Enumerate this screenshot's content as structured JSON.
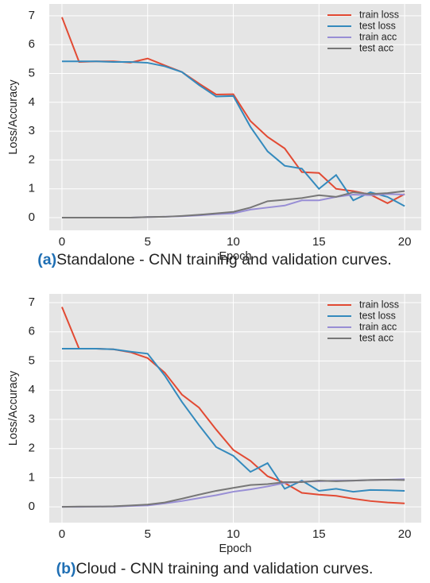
{
  "chart_data": [
    {
      "type": "line",
      "xlabel": "Epoch",
      "ylabel": "Loss/Accuracy",
      "x": [
        0,
        1,
        2,
        3,
        4,
        5,
        6,
        7,
        8,
        9,
        10,
        11,
        12,
        13,
        14,
        15,
        16,
        17,
        18,
        19,
        20
      ],
      "xlim": [
        -0.74,
        20.97
      ],
      "xticks": [
        0,
        5,
        10,
        15,
        20
      ],
      "ylim": [
        -0.44,
        7.41
      ],
      "yticks": [
        0,
        1,
        2,
        3,
        4,
        5,
        6,
        7
      ],
      "grid": true,
      "legend": "upper right",
      "series": [
        {
          "name": "train loss",
          "color": "#e24a33",
          "values": [
            6.95,
            5.4,
            5.42,
            5.42,
            5.38,
            5.52,
            5.28,
            5.05,
            4.65,
            4.27,
            4.28,
            3.35,
            2.8,
            2.4,
            1.58,
            1.55,
            1.0,
            0.92,
            0.8,
            0.5,
            0.82
          ]
        },
        {
          "name": "test loss",
          "color": "#348abd",
          "values": [
            5.42,
            5.42,
            5.42,
            5.4,
            5.4,
            5.37,
            5.25,
            5.05,
            4.6,
            4.2,
            4.22,
            3.15,
            2.3,
            1.8,
            1.7,
            1.0,
            1.48,
            0.6,
            0.88,
            0.72,
            0.4
          ]
        },
        {
          "name": "train acc",
          "color": "#988ed5",
          "values": [
            0,
            0,
            0,
            0,
            0,
            0.02,
            0.03,
            0.05,
            0.08,
            0.12,
            0.15,
            0.28,
            0.35,
            0.42,
            0.6,
            0.6,
            0.72,
            0.8,
            0.78,
            0.82,
            0.8
          ]
        },
        {
          "name": "test acc",
          "color": "#777777",
          "values": [
            0,
            0,
            0,
            0,
            0,
            0.02,
            0.03,
            0.06,
            0.1,
            0.15,
            0.2,
            0.35,
            0.57,
            0.62,
            0.68,
            0.78,
            0.72,
            0.88,
            0.82,
            0.85,
            0.92
          ]
        }
      ]
    },
    {
      "type": "line",
      "xlabel": "Epoch",
      "ylabel": "Loss/Accuracy",
      "x": [
        0,
        1,
        2,
        3,
        4,
        5,
        6,
        7,
        8,
        9,
        10,
        11,
        12,
        13,
        14,
        15,
        16,
        17,
        18,
        19,
        20
      ],
      "xlim": [
        -0.74,
        20.97
      ],
      "xticks": [
        0,
        5,
        10,
        15,
        20
      ],
      "ylim": [
        -0.54,
        7.3
      ],
      "yticks": [
        0,
        1,
        2,
        3,
        4,
        5,
        6,
        7
      ],
      "grid": true,
      "legend": "upper right",
      "series": [
        {
          "name": "train loss",
          "color": "#e24a33",
          "values": [
            6.85,
            5.42,
            5.42,
            5.4,
            5.3,
            5.1,
            4.6,
            3.85,
            3.4,
            2.65,
            1.95,
            1.58,
            1.05,
            0.82,
            0.48,
            0.42,
            0.38,
            0.28,
            0.2,
            0.15,
            0.12
          ]
        },
        {
          "name": "test loss",
          "color": "#348abd",
          "values": [
            5.42,
            5.42,
            5.42,
            5.4,
            5.32,
            5.25,
            4.5,
            3.6,
            2.8,
            2.05,
            1.75,
            1.2,
            1.5,
            0.62,
            0.9,
            0.55,
            0.62,
            0.52,
            0.58,
            0.57,
            0.55
          ]
        },
        {
          "name": "train acc",
          "color": "#988ed5",
          "values": [
            0,
            0,
            0.01,
            0.01,
            0.03,
            0.05,
            0.12,
            0.2,
            0.3,
            0.4,
            0.52,
            0.6,
            0.7,
            0.82,
            0.86,
            0.88,
            0.9,
            0.9,
            0.92,
            0.93,
            0.95
          ]
        },
        {
          "name": "test acc",
          "color": "#777777",
          "values": [
            0,
            0.01,
            0.01,
            0.02,
            0.05,
            0.08,
            0.15,
            0.28,
            0.42,
            0.55,
            0.65,
            0.75,
            0.78,
            0.85,
            0.85,
            0.9,
            0.88,
            0.9,
            0.92,
            0.93,
            0.92
          ]
        }
      ]
    }
  ],
  "captions": [
    {
      "label": "(a)",
      "text": "Standalone - CNN training and validation curves."
    },
    {
      "label": "(b)",
      "text": "Cloud - CNN training and validation curves."
    }
  ]
}
